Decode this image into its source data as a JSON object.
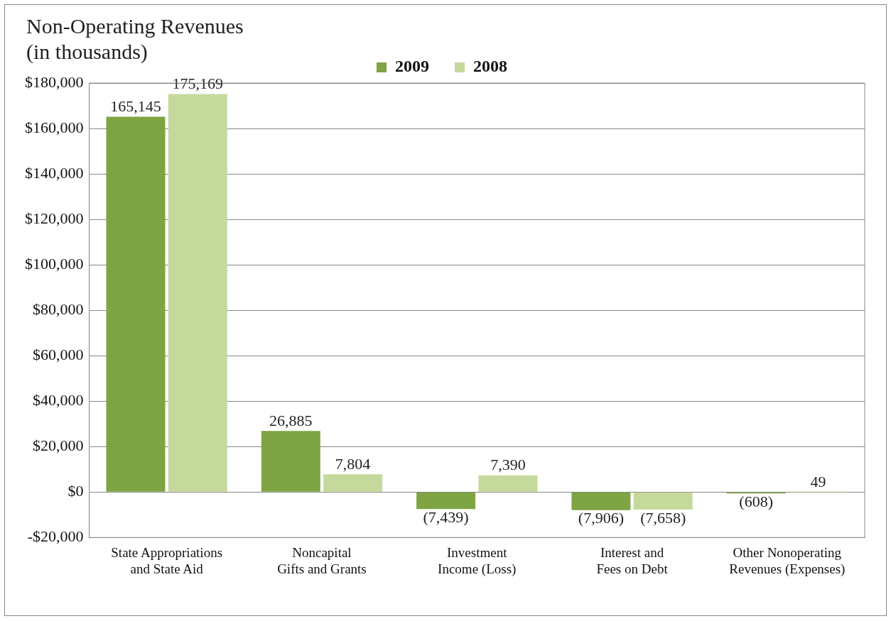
{
  "chart_data": {
    "type": "bar",
    "title": "Non-Operating Revenues",
    "subtitle": "(in thousands)",
    "categories": [
      "State Appropriations and State Aid",
      "Noncapital Gifts and Grants",
      "Investment Income (Loss)",
      "Interest and Fees on Debt",
      "Other Nonoperating Revenues (Expenses)"
    ],
    "series": [
      {
        "name": "2009",
        "color": "#7ea443",
        "values": [
          165145,
          26885,
          -7439,
          -7906,
          -608
        ],
        "value_labels": [
          "165,145",
          "26,885",
          "(7,439)",
          "(7,906)",
          "(608)"
        ]
      },
      {
        "name": "2008",
        "color": "#c6d99c",
        "values": [
          175169,
          7804,
          7390,
          -7658,
          49
        ],
        "value_labels": [
          "175,169",
          "7,804",
          "7,390",
          "(7,658)",
          "49"
        ]
      }
    ],
    "ylim": [
      -20000,
      180000
    ],
    "yticks": [
      {
        "value": -20000,
        "label": "-$20,000"
      },
      {
        "value": 0,
        "label": "$0"
      },
      {
        "value": 20000,
        "label": "$20,000"
      },
      {
        "value": 40000,
        "label": "$40,000"
      },
      {
        "value": 60000,
        "label": "$60,000"
      },
      {
        "value": 80000,
        "label": "$80,000"
      },
      {
        "value": 100000,
        "label": "$100,000"
      },
      {
        "value": 120000,
        "label": "$120,000"
      },
      {
        "value": 140000,
        "label": "$140,000"
      },
      {
        "value": 160000,
        "label": "$160,000"
      },
      {
        "value": 180000,
        "label": "$180,000"
      }
    ],
    "grid": "y",
    "legend": "top"
  }
}
